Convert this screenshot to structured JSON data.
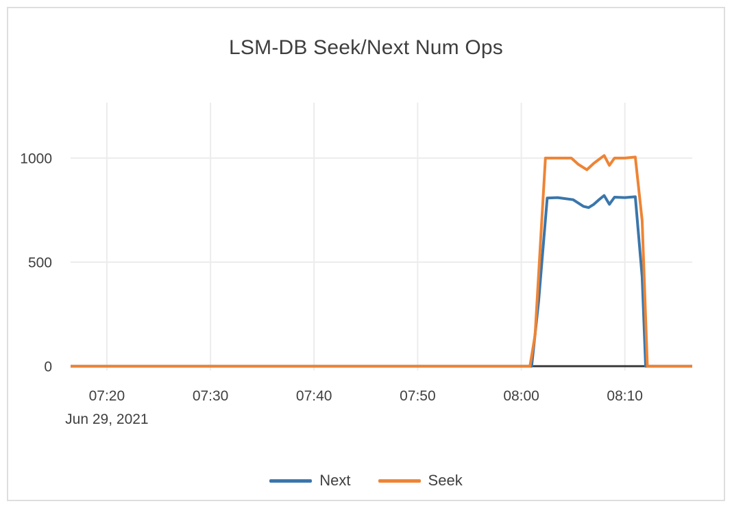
{
  "chart_data": {
    "type": "line",
    "title": "LSM-DB Seek/Next Num Ops",
    "x_axis": {
      "date_label": "Jun 29, 2021",
      "ticks": [
        "07:20",
        "07:30",
        "07:40",
        "07:50",
        "08:00",
        "08:10"
      ],
      "domain": [
        "07:16:30",
        "08:16:30"
      ]
    },
    "y_axis": {
      "ticks": [
        0,
        500,
        1000
      ],
      "domain": [
        -20,
        1266
      ]
    },
    "grid": true,
    "legend_position": "bottom-center",
    "colors": {
      "grid_line": "#ECECEC",
      "zero_line": "#3A3A3A",
      "text": "#3F3F3F"
    },
    "series": [
      {
        "name": "Next",
        "color": "#3A76AB",
        "points": [
          [
            "07:16:30",
            0
          ],
          [
            "07:20:00",
            0
          ],
          [
            "07:25:00",
            0
          ],
          [
            "07:30:00",
            0
          ],
          [
            "07:35:00",
            0
          ],
          [
            "07:40:00",
            0
          ],
          [
            "07:45:00",
            0
          ],
          [
            "07:50:00",
            0
          ],
          [
            "07:55:00",
            0
          ],
          [
            "08:00:00",
            0
          ],
          [
            "08:01:00",
            0
          ],
          [
            "08:01:40",
            310
          ],
          [
            "08:02:30",
            808
          ],
          [
            "08:03:30",
            810
          ],
          [
            "08:05:00",
            800
          ],
          [
            "08:06:00",
            768
          ],
          [
            "08:06:30",
            762
          ],
          [
            "08:07:00",
            778
          ],
          [
            "08:07:30",
            800
          ],
          [
            "08:08:00",
            820
          ],
          [
            "08:08:30",
            778
          ],
          [
            "08:09:00",
            812
          ],
          [
            "08:10:00",
            810
          ],
          [
            "08:11:00",
            814
          ],
          [
            "08:11:40",
            430
          ],
          [
            "08:12:00",
            0
          ],
          [
            "08:13:00",
            0
          ],
          [
            "08:16:30",
            0
          ]
        ]
      },
      {
        "name": "Seek",
        "color": "#EE8435",
        "points": [
          [
            "07:16:30",
            0
          ],
          [
            "07:20:00",
            0
          ],
          [
            "07:25:00",
            0
          ],
          [
            "07:30:00",
            0
          ],
          [
            "07:35:00",
            0
          ],
          [
            "07:40:00",
            0
          ],
          [
            "07:45:00",
            0
          ],
          [
            "07:50:00",
            0
          ],
          [
            "07:55:00",
            0
          ],
          [
            "08:00:00",
            0
          ],
          [
            "08:00:50",
            0
          ],
          [
            "08:01:20",
            150
          ],
          [
            "08:02:20",
            1000
          ],
          [
            "08:03:30",
            1000
          ],
          [
            "08:04:50",
            1000
          ],
          [
            "08:05:30",
            970
          ],
          [
            "08:06:20",
            944
          ],
          [
            "08:07:00",
            975
          ],
          [
            "08:07:40",
            1000
          ],
          [
            "08:08:00",
            1012
          ],
          [
            "08:08:30",
            965
          ],
          [
            "08:09:00",
            1000
          ],
          [
            "08:10:00",
            1000
          ],
          [
            "08:11:00",
            1005
          ],
          [
            "08:11:40",
            700
          ],
          [
            "08:12:10",
            0
          ],
          [
            "08:13:00",
            0
          ],
          [
            "08:16:30",
            0
          ]
        ]
      }
    ]
  },
  "ui": {
    "border_color": "#DEDEDE"
  }
}
